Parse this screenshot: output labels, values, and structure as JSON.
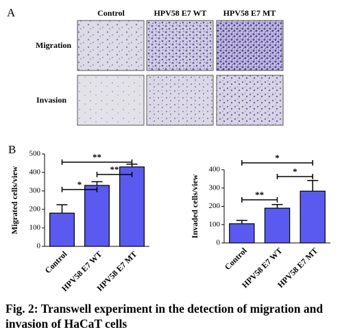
{
  "panel_a": {
    "label": "A",
    "columns": [
      "Control",
      "HPV58 E7 WT",
      "HPV58 E7 MT"
    ],
    "rows": [
      "Migration",
      "Invasion"
    ]
  },
  "panel_b": {
    "label": "B"
  },
  "chart_data": [
    {
      "type": "bar",
      "y_label": "Migrated cells/view",
      "categories": [
        "Control",
        "HPV58 E7 WT",
        "HPV58 E7 MT"
      ],
      "values": [
        180,
        330,
        430
      ],
      "errors": [
        45,
        20,
        15
      ],
      "color": "#5a5af0",
      "ylim": [
        0,
        500
      ],
      "yticks": [
        0,
        100,
        200,
        300,
        400,
        500
      ],
      "annotations": [
        {
          "text": "*",
          "groups": [
            0,
            1
          ]
        },
        {
          "text": "**",
          "groups": [
            1,
            2
          ]
        },
        {
          "text": "**",
          "groups": [
            0,
            2
          ]
        }
      ]
    },
    {
      "type": "bar",
      "y_label": "Invaded cells/view",
      "categories": [
        "Control",
        "HPV58 E7 WT",
        "HPV58 E7 MT"
      ],
      "values": [
        105,
        190,
        283
      ],
      "errors": [
        18,
        20,
        58
      ],
      "color": "#5a5af0",
      "ylim": [
        0,
        400
      ],
      "yticks": [
        0,
        100,
        200,
        300,
        400
      ],
      "annotations": [
        {
          "text": "**",
          "groups": [
            0,
            1
          ]
        },
        {
          "text": "*",
          "groups": [
            1,
            2
          ]
        },
        {
          "text": "*",
          "groups": [
            0,
            2
          ]
        }
      ]
    }
  ],
  "caption": "Fig. 2: Transwell experiment in the detection of migration and invasion of HaCaT cells"
}
